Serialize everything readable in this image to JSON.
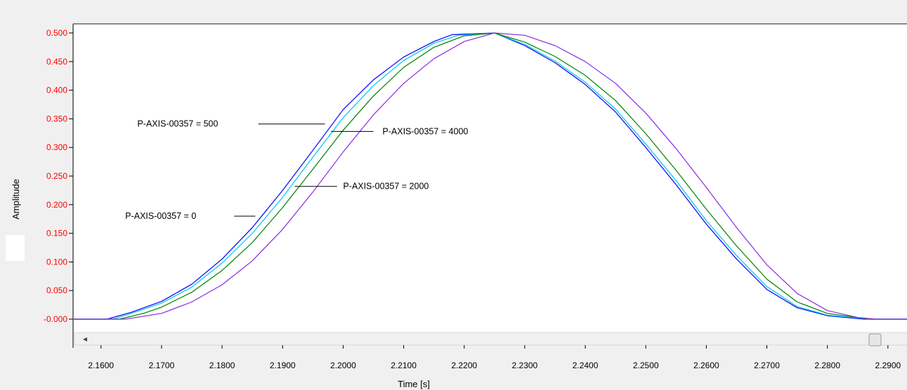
{
  "chart_data": {
    "type": "line",
    "title": "",
    "xlabel": "Time [s]",
    "ylabel": "Amplitude",
    "xlim": [
      2.1555,
      2.2935
    ],
    "ylim": [
      -0.012,
      0.512
    ],
    "x_ticks": [
      {
        "value": 2.16,
        "label": "2.1600"
      },
      {
        "value": 2.17,
        "label": "2.1700"
      },
      {
        "value": 2.18,
        "label": "2.1800"
      },
      {
        "value": 2.19,
        "label": "2.1900"
      },
      {
        "value": 2.2,
        "label": "2.2000"
      },
      {
        "value": 2.21,
        "label": "2.2100"
      },
      {
        "value": 2.22,
        "label": "2.2200"
      },
      {
        "value": 2.23,
        "label": "2.2300"
      },
      {
        "value": 2.24,
        "label": "2.2400"
      },
      {
        "value": 2.25,
        "label": "2.2500"
      },
      {
        "value": 2.26,
        "label": "2.2600"
      },
      {
        "value": 2.27,
        "label": "2.2700"
      },
      {
        "value": 2.28,
        "label": "2.2800"
      },
      {
        "value": 2.29,
        "label": "2.2900"
      }
    ],
    "y_ticks": [
      {
        "value": 0.5,
        "label": "0.500"
      },
      {
        "value": 0.45,
        "label": "0.450"
      },
      {
        "value": 0.4,
        "label": "0.400"
      },
      {
        "value": 0.35,
        "label": "0.350"
      },
      {
        "value": 0.3,
        "label": "0.300"
      },
      {
        "value": 0.25,
        "label": "0.250"
      },
      {
        "value": 0.2,
        "label": "0.200"
      },
      {
        "value": 0.15,
        "label": "0.150"
      },
      {
        "value": 0.1,
        "label": "0.100"
      },
      {
        "value": 0.05,
        "label": "0.050"
      },
      {
        "value": 0.0,
        "label": "-0.000"
      }
    ],
    "grid": false,
    "series": [
      {
        "color": "#0000ff",
        "points": [
          [
            2.1555,
            0
          ],
          [
            2.161,
            0.0
          ],
          [
            2.165,
            0.012
          ],
          [
            2.17,
            0.031
          ],
          [
            2.175,
            0.061
          ],
          [
            2.18,
            0.105
          ],
          [
            2.185,
            0.16
          ],
          [
            2.19,
            0.225
          ],
          [
            2.195,
            0.295
          ],
          [
            2.2,
            0.366
          ],
          [
            2.205,
            0.418
          ],
          [
            2.21,
            0.458
          ],
          [
            2.215,
            0.485
          ],
          [
            2.218,
            0.497
          ],
          [
            2.225,
            0.5
          ],
          [
            2.23,
            0.478
          ],
          [
            2.235,
            0.448
          ],
          [
            2.24,
            0.41
          ],
          [
            2.245,
            0.362
          ],
          [
            2.25,
            0.3
          ],
          [
            2.255,
            0.235
          ],
          [
            2.26,
            0.166
          ],
          [
            2.265,
            0.105
          ],
          [
            2.27,
            0.052
          ],
          [
            2.275,
            0.02
          ],
          [
            2.28,
            0.006
          ],
          [
            2.286,
            0.0
          ],
          [
            2.2935,
            0
          ]
        ]
      },
      {
        "color": "#00c8e8",
        "points": [
          [
            2.1555,
            0
          ],
          [
            2.162,
            0.0
          ],
          [
            2.165,
            0.01
          ],
          [
            2.17,
            0.028
          ],
          [
            2.175,
            0.056
          ],
          [
            2.18,
            0.098
          ],
          [
            2.185,
            0.15
          ],
          [
            2.19,
            0.213
          ],
          [
            2.195,
            0.283
          ],
          [
            2.2,
            0.352
          ],
          [
            2.205,
            0.408
          ],
          [
            2.21,
            0.452
          ],
          [
            2.215,
            0.482
          ],
          [
            2.219,
            0.496
          ],
          [
            2.225,
            0.5
          ],
          [
            2.23,
            0.48
          ],
          [
            2.235,
            0.451
          ],
          [
            2.24,
            0.414
          ],
          [
            2.245,
            0.367
          ],
          [
            2.25,
            0.306
          ],
          [
            2.255,
            0.242
          ],
          [
            2.26,
            0.172
          ],
          [
            2.265,
            0.111
          ],
          [
            2.27,
            0.057
          ],
          [
            2.275,
            0.022
          ],
          [
            2.28,
            0.007
          ],
          [
            2.287,
            0.0
          ],
          [
            2.2935,
            0
          ]
        ]
      },
      {
        "color": "#008000",
        "points": [
          [
            2.1555,
            0
          ],
          [
            2.163,
            0.0
          ],
          [
            2.167,
            0.01
          ],
          [
            2.17,
            0.021
          ],
          [
            2.175,
            0.047
          ],
          [
            2.18,
            0.085
          ],
          [
            2.185,
            0.134
          ],
          [
            2.19,
            0.195
          ],
          [
            2.195,
            0.262
          ],
          [
            2.2,
            0.33
          ],
          [
            2.205,
            0.39
          ],
          [
            2.21,
            0.44
          ],
          [
            2.215,
            0.475
          ],
          [
            2.22,
            0.495
          ],
          [
            2.225,
            0.5
          ],
          [
            2.23,
            0.484
          ],
          [
            2.235,
            0.459
          ],
          [
            2.24,
            0.426
          ],
          [
            2.245,
            0.382
          ],
          [
            2.25,
            0.324
          ],
          [
            2.255,
            0.26
          ],
          [
            2.26,
            0.192
          ],
          [
            2.265,
            0.128
          ],
          [
            2.27,
            0.07
          ],
          [
            2.275,
            0.03
          ],
          [
            2.28,
            0.01
          ],
          [
            2.287,
            0.0
          ],
          [
            2.2935,
            0
          ]
        ]
      },
      {
        "color": "#8a2be2",
        "points": [
          [
            2.1555,
            0
          ],
          [
            2.164,
            0.0
          ],
          [
            2.17,
            0.01
          ],
          [
            2.175,
            0.03
          ],
          [
            2.18,
            0.06
          ],
          [
            2.185,
            0.102
          ],
          [
            2.19,
            0.157
          ],
          [
            2.195,
            0.222
          ],
          [
            2.2,
            0.292
          ],
          [
            2.205,
            0.357
          ],
          [
            2.21,
            0.412
          ],
          [
            2.215,
            0.455
          ],
          [
            2.22,
            0.485
          ],
          [
            2.225,
            0.5
          ],
          [
            2.23,
            0.496
          ],
          [
            2.235,
            0.478
          ],
          [
            2.24,
            0.45
          ],
          [
            2.245,
            0.412
          ],
          [
            2.25,
            0.36
          ],
          [
            2.255,
            0.298
          ],
          [
            2.26,
            0.23
          ],
          [
            2.265,
            0.16
          ],
          [
            2.27,
            0.095
          ],
          [
            2.275,
            0.045
          ],
          [
            2.28,
            0.015
          ],
          [
            2.285,
            0.003
          ],
          [
            2.288,
            0.0
          ],
          [
            2.2935,
            0
          ]
        ]
      }
    ],
    "annotations": [
      {
        "text": "P-AXIS-00357 = 500",
        "label_x": 2.166,
        "label_y": 0.341,
        "line_from": [
          2.186,
          0.341
        ],
        "line_to": [
          2.197,
          0.341
        ]
      },
      {
        "text": "P-AXIS-00357 = 4000",
        "label_x": 2.2065,
        "label_y": 0.328,
        "line_from": [
          2.198,
          0.328
        ],
        "line_to": [
          2.205,
          0.328
        ]
      },
      {
        "text": "P-AXIS-00357 = 2000",
        "label_x": 2.2,
        "label_y": 0.232,
        "line_from": [
          2.192,
          0.232
        ],
        "line_to": [
          2.199,
          0.232
        ]
      },
      {
        "text": "P-AXIS-00357 = 0",
        "label_x": 2.164,
        "label_y": 0.18,
        "line_from": [
          2.182,
          0.18
        ],
        "line_to": [
          2.1855,
          0.18
        ]
      }
    ]
  },
  "scrollbar": {
    "left_arrow": "◂"
  }
}
